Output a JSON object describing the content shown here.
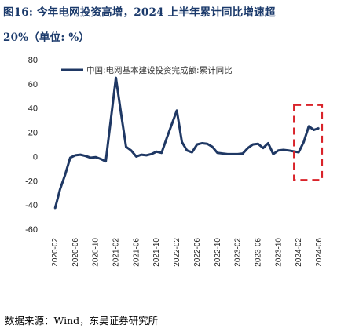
{
  "header": {
    "title_line1": "图16: 今年电网投资高增，2024 上半年累计同比增速超",
    "title_line2": "20%（单位:    %）"
  },
  "footer": {
    "source": "数据来源：Wind，东吴证券研究所"
  },
  "chart_data": {
    "type": "line",
    "title": "图16: 今年电网投资高增，2024 上半年累计同比增速超 20%（单位: %）",
    "xlabel": "",
    "ylabel": "",
    "ylim": [
      -60,
      80
    ],
    "yticks": [
      -60,
      -40,
      -20,
      0,
      20,
      40,
      60,
      80
    ],
    "xtick_labels": [
      "2020-02",
      "2020-06",
      "2020-10",
      "2021-02",
      "2021-06",
      "2021-10",
      "2022-02",
      "2022-06",
      "2022-10",
      "2023-02",
      "2023-06",
      "2023-10",
      "2024-02",
      "2024-06"
    ],
    "grid": false,
    "legend_position": "top",
    "colors": {
      "line": "#1f3864",
      "highlight_box": "#d9232a"
    },
    "series": [
      {
        "name": "中国:电网基本建设投资完成额:累计同比",
        "x": [
          "2020-02",
          "2020-03",
          "2020-04",
          "2020-05",
          "2020-06",
          "2020-07",
          "2020-08",
          "2020-09",
          "2020-10",
          "2020-11",
          "2020-12",
          "2021-02",
          "2021-03",
          "2021-04",
          "2021-05",
          "2021-06",
          "2021-07",
          "2021-08",
          "2021-09",
          "2021-10",
          "2021-11",
          "2021-12",
          "2022-02",
          "2022-03",
          "2022-04",
          "2022-05",
          "2022-06",
          "2022-07",
          "2022-08",
          "2022-09",
          "2022-10",
          "2022-11",
          "2022-12",
          "2023-02",
          "2023-03",
          "2023-04",
          "2023-05",
          "2023-06",
          "2023-07",
          "2023-08",
          "2023-09",
          "2023-10",
          "2023-11",
          "2023-12",
          "2024-02",
          "2024-03",
          "2024-04",
          "2024-05",
          "2024-06"
        ],
        "values": [
          -43,
          -27,
          -15,
          -1,
          1,
          1.5,
          0.5,
          -1,
          -0.5,
          -2,
          -4,
          65,
          36,
          8,
          5,
          0,
          1.5,
          1,
          2,
          4,
          3,
          15,
          38,
          12,
          5,
          3.5,
          10,
          11,
          10.5,
          8,
          3,
          2.5,
          2,
          2,
          2.5,
          7,
          10,
          10.5,
          7,
          11,
          2,
          5,
          5.5,
          5,
          3.5,
          12,
          25,
          22,
          23.5
        ]
      }
    ],
    "annotations": [
      {
        "type": "highlight_box",
        "x_range": [
          "2024-02",
          "2024-06"
        ],
        "y_range": [
          -20,
          40
        ],
        "style": "dashed"
      }
    ]
  }
}
